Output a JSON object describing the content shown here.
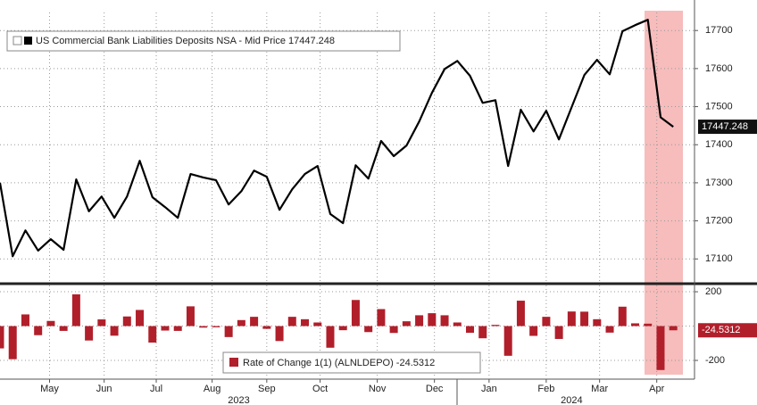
{
  "chart_data": [
    {
      "type": "line",
      "series": [
        {
          "name": "US Commercial Bank Liabilities Deposits NSA - Mid Price 17447.248",
          "color": "#000000",
          "values": [
            17300,
            17107,
            17175,
            17122,
            17152,
            17124,
            17309,
            17225,
            17264,
            17208,
            17264,
            17358,
            17262,
            17236,
            17208,
            17323,
            17314,
            17307,
            17243,
            17278,
            17332,
            17316,
            17229,
            17283,
            17323,
            17344,
            17218,
            17194,
            17346,
            17311,
            17410,
            17370,
            17398,
            17461,
            17536,
            17599,
            17620,
            17581,
            17510,
            17517,
            17344,
            17492,
            17435,
            17489,
            17414,
            17499,
            17583,
            17623,
            17585,
            17698,
            17714,
            17728,
            17472,
            17447.248
          ]
        }
      ],
      "ylim": [
        17035,
        17752
      ],
      "yticks": [
        17100,
        17200,
        17300,
        17400,
        17500,
        17600,
        17700
      ],
      "grid": true
    },
    {
      "type": "bar",
      "series": [
        {
          "name": "Rate of Change 1(1) (ALNLDEPO) -24.5312",
          "color": "#b11f2b",
          "values": [
            -130,
            -193,
            68,
            -53,
            30,
            -28,
            185,
            -84,
            39,
            -56,
            56,
            94,
            -96,
            -26,
            -28,
            115,
            -9,
            -7,
            -64,
            35,
            54,
            -16,
            -87,
            54,
            40,
            21,
            -126,
            -24,
            152,
            -35,
            99,
            -40,
            28,
            63,
            75,
            63,
            21,
            -39,
            -71,
            7,
            -173,
            148,
            -57,
            54,
            -75,
            85,
            84,
            40,
            -38,
            113,
            16,
            14,
            -256,
            -24.5312
          ]
        }
      ],
      "ylim": [
        -309,
        247
      ],
      "yticks": [
        -200,
        200
      ],
      "xticks": [
        {
          "value": 3.9,
          "label": "May"
        },
        {
          "value": 8.2,
          "label": "Jun"
        },
        {
          "value": 12.3,
          "label": "Jul"
        },
        {
          "value": 16.7,
          "label": "Aug"
        },
        {
          "value": 21,
          "label": "Sep"
        },
        {
          "value": 25.2,
          "label": "Oct"
        },
        {
          "value": 29.7,
          "label": "Nov"
        },
        {
          "value": 34.2,
          "label": "Dec"
        },
        {
          "value": 38.5,
          "label": "Jan"
        },
        {
          "value": 43,
          "label": "Feb"
        },
        {
          "value": 47.2,
          "label": "Mar"
        },
        {
          "value": 51.7,
          "label": "Apr"
        }
      ],
      "years": [
        {
          "value": 18.8,
          "label": "2023"
        },
        {
          "value": 45,
          "label": "2024"
        }
      ]
    }
  ]
}
